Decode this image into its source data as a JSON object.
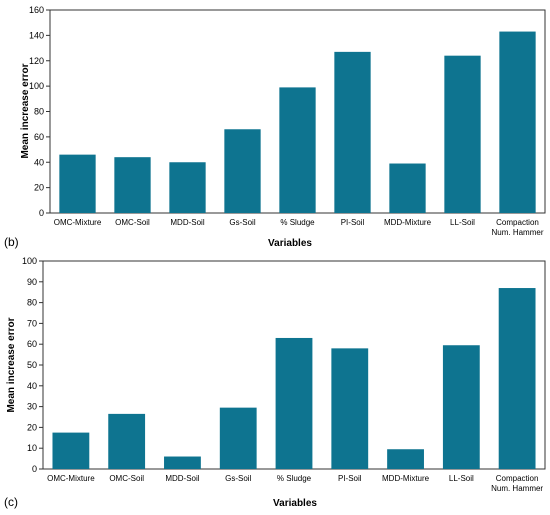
{
  "chart_data": [
    {
      "type": "bar",
      "panel_label": "(b)",
      "categories": [
        "OMC-Mixture",
        "OMC-Soil",
        "MDD-Soil",
        "Gs-Soil",
        "% Sludge",
        "PI-Soil",
        "MDD-Mixture",
        "LL-Soil",
        [
          "Compaction",
          "Num. Hammer"
        ]
      ],
      "values": [
        46,
        44,
        40,
        66,
        99,
        127,
        39,
        124,
        143
      ],
      "xlabel": "Variables",
      "ylabel": "Mean increase error",
      "ylim": [
        0,
        160
      ],
      "yticks": [
        0,
        20,
        40,
        60,
        80,
        100,
        120,
        140,
        160
      ],
      "grid": false,
      "bar_color": "#0e7490"
    },
    {
      "type": "bar",
      "panel_label": "(c)",
      "categories": [
        "OMC-Mixture",
        "OMC-Soil",
        "MDD-Soil",
        "Gs-Soil",
        "% Sludge",
        "PI-Soil",
        "MDD-Mixture",
        "LL-Soil",
        [
          "Compaction",
          "Num. Hammer"
        ]
      ],
      "values": [
        17.5,
        26.5,
        6,
        29.5,
        63,
        58,
        9.5,
        59.5,
        87
      ],
      "xlabel": "Variables",
      "ylabel": "Mean increase error",
      "ylim": [
        0,
        100
      ],
      "yticks": [
        0,
        10,
        20,
        30,
        40,
        50,
        60,
        70,
        80,
        90,
        100
      ],
      "grid": false,
      "bar_color": "#0e7490"
    }
  ]
}
